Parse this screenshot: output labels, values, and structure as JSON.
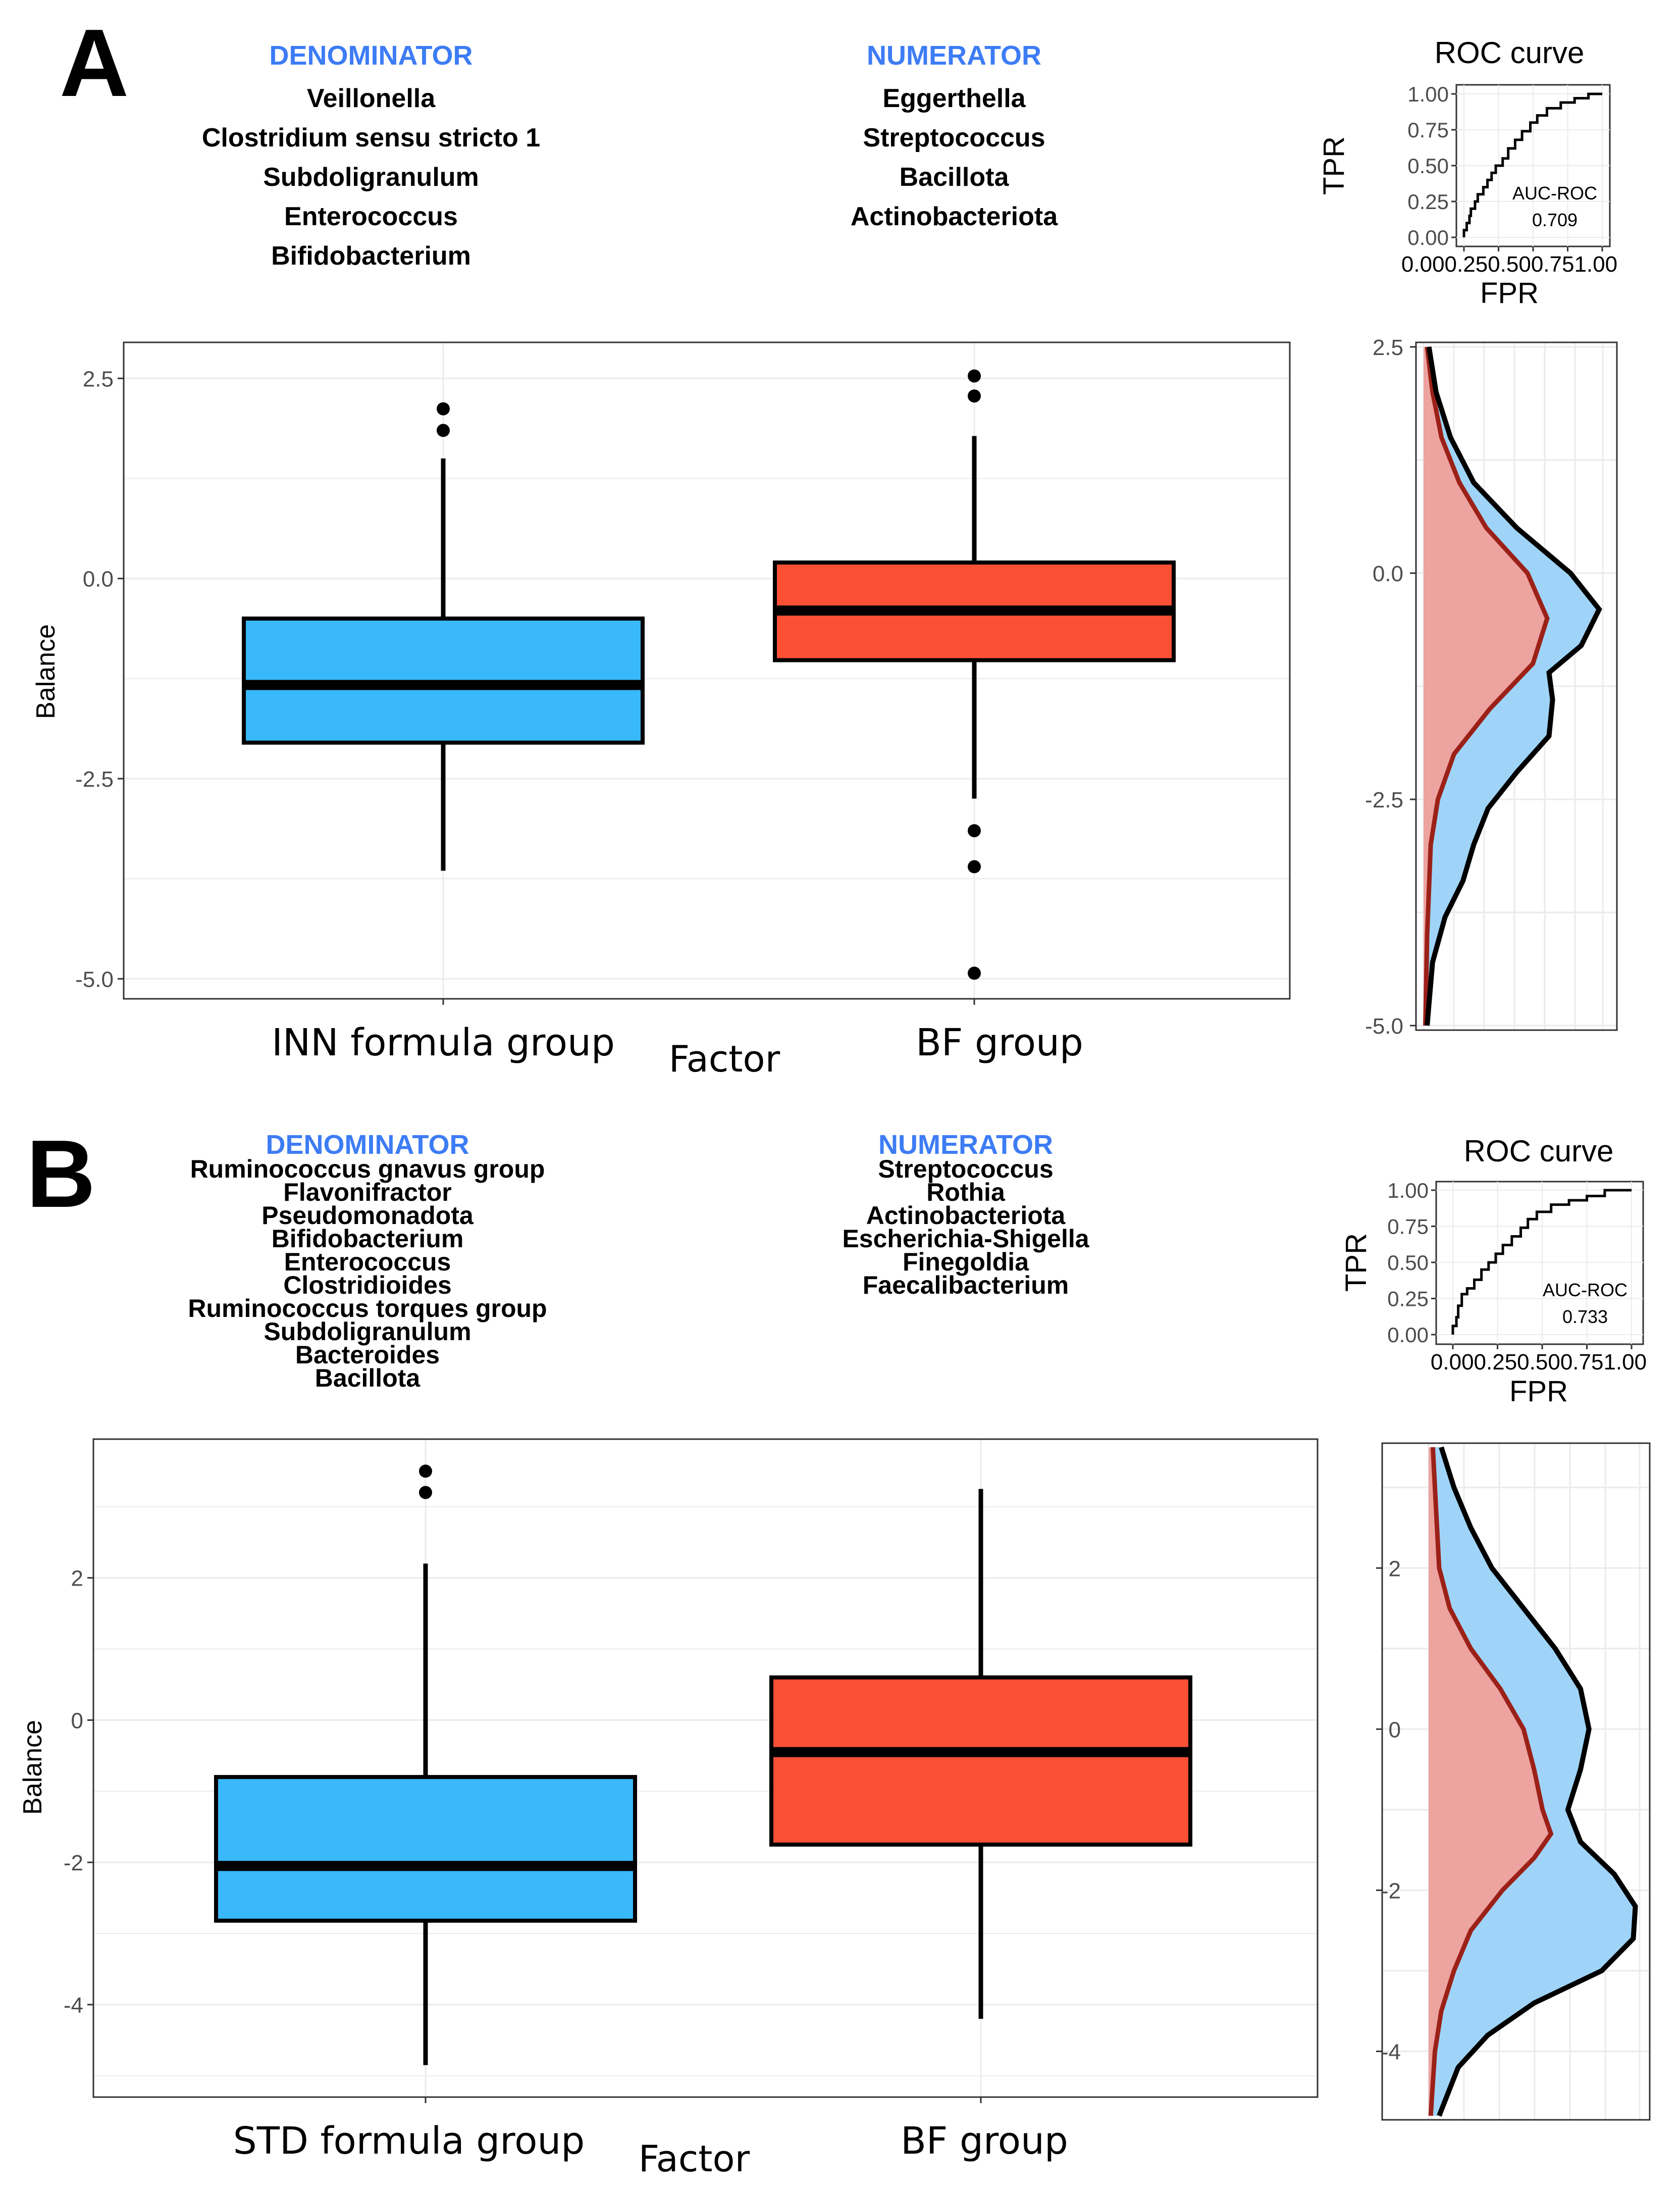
{
  "colors": {
    "header": "#3d7cf5",
    "group_blue": "#39b8fa",
    "group_red": "#fc5035",
    "density_red_fill": "#fa9a90",
    "density_red_line": "#9b2118",
    "density_blue_fill": "#9fd4f8",
    "grid": "#ebebeb",
    "frame": "#333333"
  },
  "panels": [
    {
      "letter": "A",
      "denominator_title": "DENOMINATOR",
      "denominator": [
        "Veillonella",
        "Clostridium sensu stricto 1",
        "Subdoligranulum",
        "Enterococcus",
        "Bifidobacterium"
      ],
      "numerator_title": "NUMERATOR",
      "numerator": [
        "Eggerthella",
        "Streptococcus",
        "Bacillota",
        "Actinobacteriota"
      ],
      "boxplot": {
        "ylabel": "Balance",
        "xlabel": "Factor",
        "categories": [
          "INN formula group",
          "BF group"
        ],
        "ylim": [
          -5.25,
          2.95
        ],
        "yticks": [
          2.5,
          0.0,
          -2.5,
          -5.0
        ],
        "ytick_labels": [
          "2.5",
          "0.0",
          "-2.5",
          "-5.0"
        ],
        "boxes": [
          {
            "q1": -2.05,
            "median": -1.33,
            "q3": -0.5,
            "whisker_low": -3.65,
            "whisker_high": 1.5,
            "outliers": [
              2.12,
              1.85
            ]
          },
          {
            "q1": -1.02,
            "median": -0.4,
            "q3": 0.2,
            "whisker_low": -2.75,
            "whisker_high": 1.78,
            "outliers": [
              2.53,
              2.28,
              -3.15,
              -3.6,
              -4.93
            ]
          }
        ]
      },
      "roc": {
        "title": "ROC curve",
        "xlabel": "FPR",
        "ylabel": "TPR",
        "auc_label": "AUC-ROC",
        "auc": "0.709",
        "tick_labels": [
          "0.00",
          "0.25",
          "0.50",
          "0.75",
          "1.00"
        ],
        "x_tick_text": "0.000.250.500.751.00",
        "curve": [
          [
            0,
            0
          ],
          [
            0.02,
            0.05
          ],
          [
            0.04,
            0.1
          ],
          [
            0.05,
            0.15
          ],
          [
            0.08,
            0.2
          ],
          [
            0.1,
            0.25
          ],
          [
            0.14,
            0.3
          ],
          [
            0.17,
            0.35
          ],
          [
            0.2,
            0.4
          ],
          [
            0.23,
            0.45
          ],
          [
            0.28,
            0.5
          ],
          [
            0.32,
            0.55
          ],
          [
            0.37,
            0.62
          ],
          [
            0.42,
            0.68
          ],
          [
            0.48,
            0.74
          ],
          [
            0.53,
            0.8
          ],
          [
            0.6,
            0.85
          ],
          [
            0.7,
            0.9
          ],
          [
            0.8,
            0.94
          ],
          [
            0.9,
            0.97
          ],
          [
            1.0,
            1.0
          ]
        ]
      },
      "density": {
        "yticks": [
          2.5,
          0.0,
          -2.5,
          -5.0
        ],
        "ytick_labels": [
          "2.5",
          "0.0",
          "-2.5",
          "-5.0"
        ],
        "ylim": [
          -5.05,
          2.55
        ],
        "outer_curve": [
          [
            2.5,
            0.03
          ],
          [
            2.0,
            0.07
          ],
          [
            1.5,
            0.15
          ],
          [
            1.0,
            0.28
          ],
          [
            0.5,
            0.52
          ],
          [
            0.0,
            0.82
          ],
          [
            -0.4,
            0.98
          ],
          [
            -0.8,
            0.88
          ],
          [
            -1.1,
            0.7
          ],
          [
            -1.4,
            0.72
          ],
          [
            -1.8,
            0.7
          ],
          [
            -2.2,
            0.52
          ],
          [
            -2.6,
            0.36
          ],
          [
            -3.0,
            0.28
          ],
          [
            -3.4,
            0.22
          ],
          [
            -3.8,
            0.12
          ],
          [
            -4.3,
            0.05
          ],
          [
            -5.0,
            0.02
          ]
        ],
        "red_curve": [
          [
            2.5,
            0.02
          ],
          [
            2.0,
            0.05
          ],
          [
            1.5,
            0.1
          ],
          [
            1.0,
            0.2
          ],
          [
            0.5,
            0.35
          ],
          [
            0.0,
            0.58
          ],
          [
            -0.5,
            0.69
          ],
          [
            -1.0,
            0.61
          ],
          [
            -1.5,
            0.37
          ],
          [
            -2.0,
            0.17
          ],
          [
            -2.5,
            0.08
          ],
          [
            -3.0,
            0.04
          ],
          [
            -4.0,
            0.02
          ],
          [
            -5.0,
            0.01
          ]
        ]
      }
    },
    {
      "letter": "B",
      "denominator_title": "DENOMINATOR",
      "denominator": [
        "Ruminococcus gnavus group",
        "Flavonifractor",
        "Pseudomonadota",
        "Bifidobacterium",
        "Enterococcus",
        "Clostridioides",
        "Ruminococcus torques group",
        "Subdoligranulum",
        "Bacteroides",
        "Bacillota"
      ],
      "numerator_title": "NUMERATOR",
      "numerator": [
        "Streptococcus",
        "Rothia",
        "Actinobacteriota",
        "Escherichia-Shigella",
        "Finegoldia",
        "Faecalibacterium"
      ],
      "boxplot": {
        "ylabel": "Balance",
        "xlabel": "Factor",
        "categories": [
          "STD formula group",
          "BF group"
        ],
        "ylim": [
          -5.3,
          3.95
        ],
        "yticks": [
          2,
          0,
          -2,
          -4
        ],
        "ytick_labels": [
          "2",
          "0",
          "-2",
          "-4"
        ],
        "boxes": [
          {
            "q1": -2.82,
            "median": -2.05,
            "q3": -0.8,
            "whisker_low": -4.85,
            "whisker_high": 2.2,
            "outliers": [
              3.5,
              3.2
            ]
          },
          {
            "q1": -1.75,
            "median": -0.45,
            "q3": 0.6,
            "whisker_low": -4.2,
            "whisker_high": 3.25,
            "outliers": []
          }
        ]
      },
      "roc": {
        "title": "ROC curve",
        "xlabel": "FPR",
        "ylabel": "TPR",
        "auc_label": "AUC-ROC",
        "auc": "0.733",
        "tick_labels": [
          "0.00",
          "0.25",
          "0.50",
          "0.75",
          "1.00"
        ],
        "x_tick_text": "0.000.250.500.751.00",
        "curve": [
          [
            0,
            0
          ],
          [
            0.02,
            0.06
          ],
          [
            0.03,
            0.12
          ],
          [
            0.05,
            0.2
          ],
          [
            0.08,
            0.28
          ],
          [
            0.12,
            0.32
          ],
          [
            0.16,
            0.38
          ],
          [
            0.2,
            0.45
          ],
          [
            0.24,
            0.5
          ],
          [
            0.28,
            0.56
          ],
          [
            0.33,
            0.62
          ],
          [
            0.38,
            0.68
          ],
          [
            0.42,
            0.74
          ],
          [
            0.47,
            0.8
          ],
          [
            0.55,
            0.85
          ],
          [
            0.65,
            0.9
          ],
          [
            0.75,
            0.93
          ],
          [
            0.85,
            0.96
          ],
          [
            1.0,
            1.0
          ]
        ]
      },
      "density": {
        "yticks": [
          2,
          0,
          -2,
          -4
        ],
        "ytick_labels": [
          "2",
          "0",
          "-2",
          "-4"
        ],
        "ylim": [
          -4.85,
          3.55
        ],
        "outer_curve": [
          [
            3.5,
            0.06
          ],
          [
            3.0,
            0.12
          ],
          [
            2.5,
            0.2
          ],
          [
            2.0,
            0.3
          ],
          [
            1.5,
            0.45
          ],
          [
            1.0,
            0.6
          ],
          [
            0.5,
            0.72
          ],
          [
            0.0,
            0.76
          ],
          [
            -0.5,
            0.72
          ],
          [
            -1.0,
            0.66
          ],
          [
            -1.4,
            0.72
          ],
          [
            -1.8,
            0.88
          ],
          [
            -2.2,
            0.98
          ],
          [
            -2.6,
            0.97
          ],
          [
            -3.0,
            0.82
          ],
          [
            -3.4,
            0.5
          ],
          [
            -3.8,
            0.28
          ],
          [
            -4.2,
            0.14
          ],
          [
            -4.8,
            0.05
          ]
        ],
        "red_curve": [
          [
            3.5,
            0.02
          ],
          [
            3.0,
            0.03
          ],
          [
            2.5,
            0.04
          ],
          [
            2.0,
            0.05
          ],
          [
            1.5,
            0.1
          ],
          [
            1.0,
            0.2
          ],
          [
            0.5,
            0.34
          ],
          [
            0.0,
            0.45
          ],
          [
            -0.5,
            0.5
          ],
          [
            -1.0,
            0.54
          ],
          [
            -1.3,
            0.58
          ],
          [
            -1.6,
            0.5
          ],
          [
            -2.0,
            0.35
          ],
          [
            -2.5,
            0.2
          ],
          [
            -3.0,
            0.12
          ],
          [
            -3.5,
            0.06
          ],
          [
            -4.0,
            0.03
          ],
          [
            -4.8,
            0.01
          ]
        ]
      }
    }
  ]
}
